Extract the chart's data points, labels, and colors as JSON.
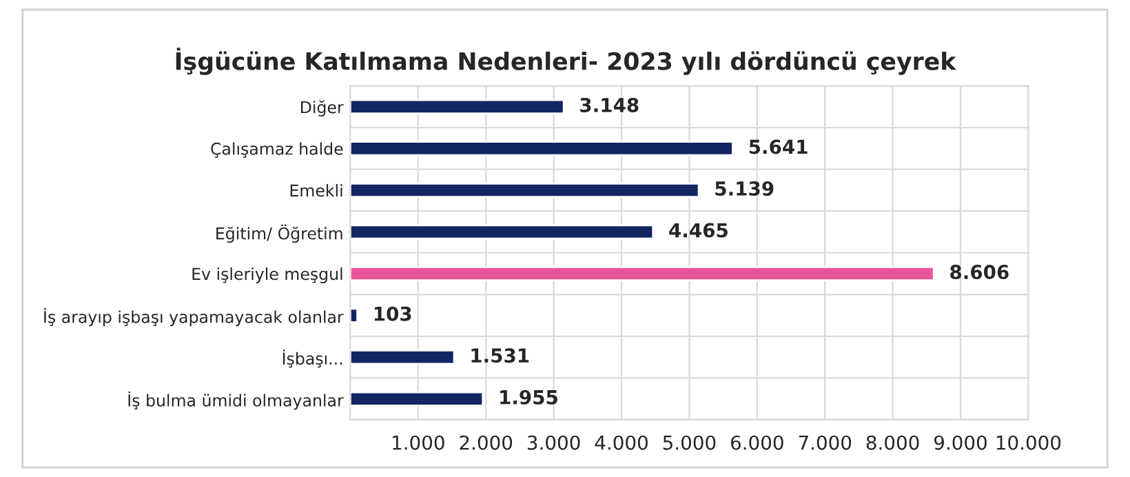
{
  "chart_data": {
    "type": "bar",
    "orientation": "horizontal",
    "title": "İşgücüne Katılmama Nedenleri- 2023 yılı dördüncü çeyrek",
    "categories": [
      "Diğer",
      "Çalışamaz halde",
      "Emekli",
      "Eğitim/ Öğretim",
      "Ev işleriyle meşgul",
      "İş arayıp işbaşı yapamayacak olanlar",
      "İşbaşı...",
      "İş bulma ümidi olmayanlar"
    ],
    "values": [
      3148,
      5641,
      5139,
      4465,
      8606,
      103,
      1531,
      1955
    ],
    "colors": [
      "#132663",
      "#132663",
      "#132663",
      "#132663",
      "#e8559b",
      "#132663",
      "#132663",
      "#132663"
    ],
    "value_labels": [
      "3.148",
      "5.641",
      "5.139",
      "4.465",
      "8.606",
      "103",
      "1.531",
      "1.955"
    ],
    "xlim": [
      0,
      10000
    ],
    "xticks": [
      {
        "value": 1000,
        "label": "1.000"
      },
      {
        "value": 2000,
        "label": "2.000"
      },
      {
        "value": 3000,
        "label": "3.000"
      },
      {
        "value": 4000,
        "label": "4.000"
      },
      {
        "value": 5000,
        "label": "5.000"
      },
      {
        "value": 6000,
        "label": "6.000"
      },
      {
        "value": 7000,
        "label": "7.000"
      },
      {
        "value": 8000,
        "label": "8.000"
      },
      {
        "value": 9000,
        "label": "9.000"
      },
      {
        "value": 10000,
        "label": "10.000"
      }
    ],
    "grid": true
  }
}
